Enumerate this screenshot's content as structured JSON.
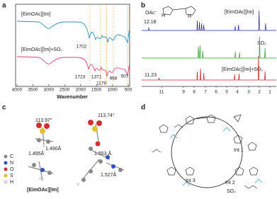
{
  "panels": [
    {
      "label": "a",
      "legend": [
        "[EimOAc][Im]",
        "[EimOAc][Im]+SO₂"
      ],
      "x_axis_label": "Wavenumber",
      "x_ticks": [
        "4000",
        "3500",
        "3000",
        "2500",
        "2000",
        "1500",
        "1000",
        "500"
      ],
      "annotations": [
        "1702",
        "1723",
        "1371",
        "1179",
        "968",
        "507"
      ]
    },
    {
      "label": "b",
      "structure_text": [
        "OAc⁻",
        "H",
        "H"
      ],
      "spectra": [
        "[EimOAc][Im]",
        "SO₂",
        "[EimOAc][Im]+SO₂"
      ],
      "shifts": [
        "12.18",
        "11.23"
      ],
      "x_ticks": [
        "11",
        "9",
        "8",
        "7",
        "6",
        "5",
        "4",
        "3",
        "2",
        "1"
      ]
    },
    {
      "label": "c",
      "angles": [
        "113.97°",
        "113.74°"
      ],
      "bonds": [
        "1.490Å",
        "1.495Å",
        "1.553 Å",
        "1.527Å"
      ],
      "legend": [
        "C",
        "N",
        "O",
        "S",
        "H"
      ],
      "caption": "[EimOAc][Im]"
    },
    {
      "label": "d",
      "intermediates": [
        "Int 1",
        "Int 2",
        "Int 3"
      ],
      "reagent": "SO₂"
    }
  ]
}
